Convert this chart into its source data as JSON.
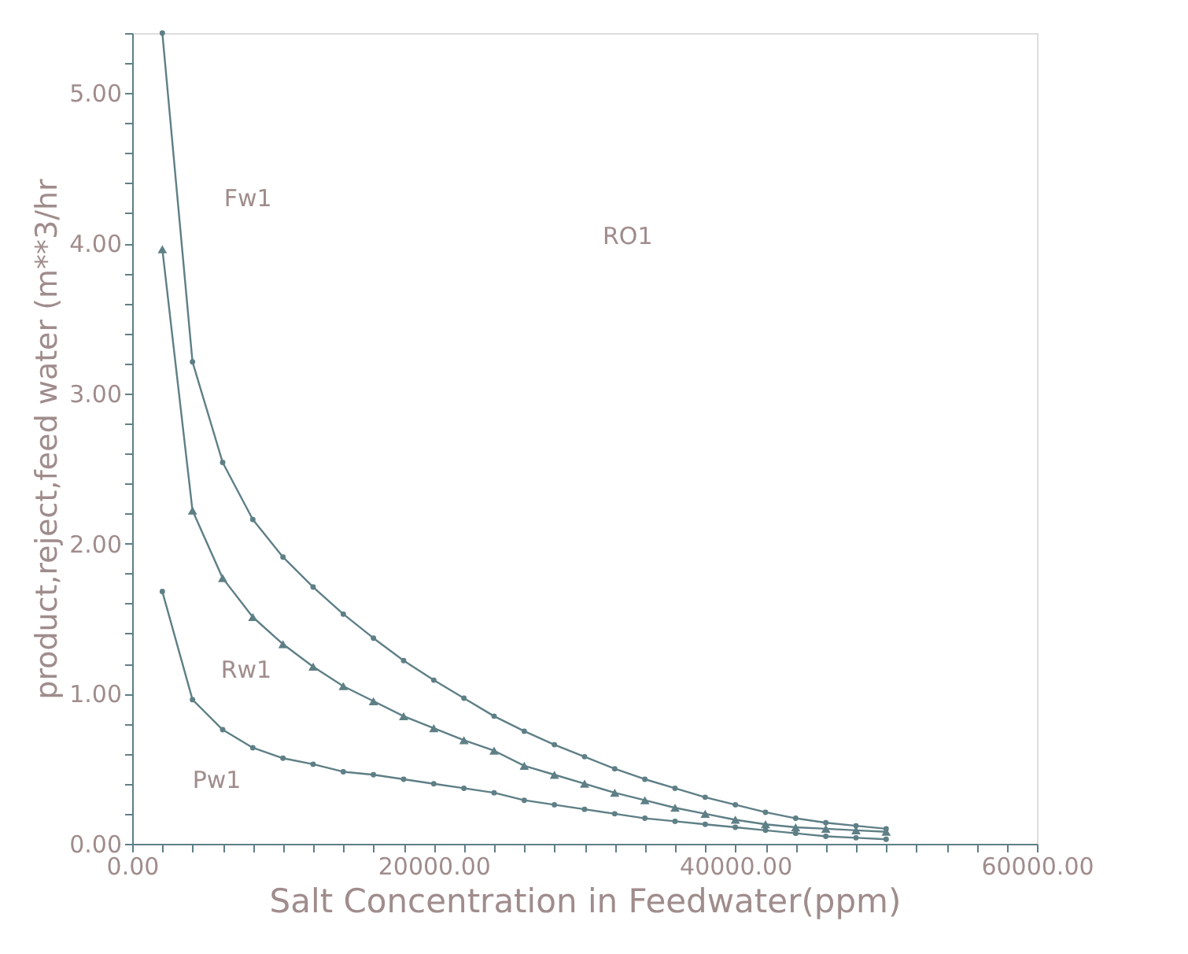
{
  "chart_data": {
    "type": "line",
    "xlabel": "Salt Concentration in Feedwater(ppm)",
    "ylabel": "product,reject,feed water (m**3/hr",
    "x": [
      2000,
      4000,
      6000,
      8000,
      10000,
      12000,
      14000,
      16000,
      18000,
      20000,
      22000,
      24000,
      26000,
      28000,
      30000,
      32000,
      34000,
      36000,
      38000,
      40000,
      42000,
      44000,
      46000,
      48000,
      50000
    ],
    "series": [
      {
        "name": "Fw1",
        "color": "#5e7f86",
        "marker": "circle",
        "values": [
          5.4,
          3.21,
          2.54,
          2.16,
          1.91,
          1.71,
          1.53,
          1.37,
          1.22,
          1.09,
          0.97,
          0.85,
          0.75,
          0.66,
          0.58,
          0.5,
          0.43,
          0.37,
          0.31,
          0.26,
          0.21,
          0.17,
          0.14,
          0.12,
          0.1
        ]
      },
      {
        "name": "Rw1",
        "color": "#5e7f86",
        "marker": "triangle",
        "values": [
          3.96,
          2.22,
          1.77,
          1.51,
          1.33,
          1.18,
          1.05,
          0.95,
          0.85,
          0.77,
          0.69,
          0.62,
          0.52,
          0.46,
          0.4,
          0.34,
          0.29,
          0.24,
          0.2,
          0.16,
          0.13,
          0.11,
          0.1,
          0.09,
          0.08
        ]
      },
      {
        "name": "Pw1",
        "color": "#5e7f86",
        "marker": "circle",
        "values": [
          1.68,
          0.96,
          0.76,
          0.64,
          0.57,
          0.53,
          0.48,
          0.46,
          0.43,
          0.4,
          0.37,
          0.34,
          0.29,
          0.26,
          0.23,
          0.2,
          0.17,
          0.15,
          0.13,
          0.11,
          0.09,
          0.07,
          0.05,
          0.04,
          0.03
        ]
      }
    ],
    "annotations": [
      "RO1"
    ],
    "xlim": [
      0,
      60000
    ],
    "xticks": [
      {
        "value": 0,
        "label": "0.00"
      },
      {
        "value": 2000,
        "label": null
      },
      {
        "value": 4000,
        "label": null
      },
      {
        "value": 6000,
        "label": null
      },
      {
        "value": 8000,
        "label": null
      },
      {
        "value": 10000,
        "label": null
      },
      {
        "value": 12000,
        "label": null
      },
      {
        "value": 14000,
        "label": null
      },
      {
        "value": 16000,
        "label": null
      },
      {
        "value": 18000,
        "label": null
      },
      {
        "value": 20000,
        "label": "20000.00"
      },
      {
        "value": 22000,
        "label": null
      },
      {
        "value": 24000,
        "label": null
      },
      {
        "value": 26000,
        "label": null
      },
      {
        "value": 28000,
        "label": null
      },
      {
        "value": 30000,
        "label": null
      },
      {
        "value": 32000,
        "label": null
      },
      {
        "value": 34000,
        "label": null
      },
      {
        "value": 36000,
        "label": null
      },
      {
        "value": 38000,
        "label": null
      },
      {
        "value": 40000,
        "label": "40000.00"
      },
      {
        "value": 42000,
        "label": null
      },
      {
        "value": 44000,
        "label": null
      },
      {
        "value": 46000,
        "label": null
      },
      {
        "value": 48000,
        "label": null
      },
      {
        "value": 50000,
        "label": null
      },
      {
        "value": 52000,
        "label": null
      },
      {
        "value": 54000,
        "label": null
      },
      {
        "value": 56000,
        "label": null
      },
      {
        "value": 58000,
        "label": null
      },
      {
        "value": 60000,
        "label": "60000.00"
      }
    ],
    "ylim": [
      0,
      5.4
    ],
    "yticks": [
      {
        "value": 0,
        "label": "0.00"
      },
      {
        "value": 0.2,
        "label": null
      },
      {
        "value": 0.4,
        "label": null
      },
      {
        "value": 0.6,
        "label": null
      },
      {
        "value": 0.8,
        "label": null
      },
      {
        "value": 1,
        "label": "1.00"
      },
      {
        "value": 1.2,
        "label": null
      },
      {
        "value": 1.4,
        "label": null
      },
      {
        "value": 1.6,
        "label": null
      },
      {
        "value": 1.8,
        "label": null
      },
      {
        "value": 2,
        "label": "2.00"
      },
      {
        "value": 2.2,
        "label": null
      },
      {
        "value": 2.4,
        "label": null
      },
      {
        "value": 2.6,
        "label": null
      },
      {
        "value": 2.8,
        "label": null
      },
      {
        "value": 3,
        "label": "3.00"
      },
      {
        "value": 3.2,
        "label": null
      },
      {
        "value": 3.4,
        "label": null
      },
      {
        "value": 3.6,
        "label": null
      },
      {
        "value": 3.8,
        "label": null
      },
      {
        "value": 4,
        "label": "4.00"
      },
      {
        "value": 4.2,
        "label": null
      },
      {
        "value": 4.4,
        "label": null
      },
      {
        "value": 4.6,
        "label": null
      },
      {
        "value": 4.8,
        "label": null
      },
      {
        "value": 5,
        "label": "5.00"
      },
      {
        "value": 5.2,
        "label": null
      },
      {
        "value": 5.4,
        "label": null
      }
    ],
    "grid": false,
    "legend": false
  }
}
